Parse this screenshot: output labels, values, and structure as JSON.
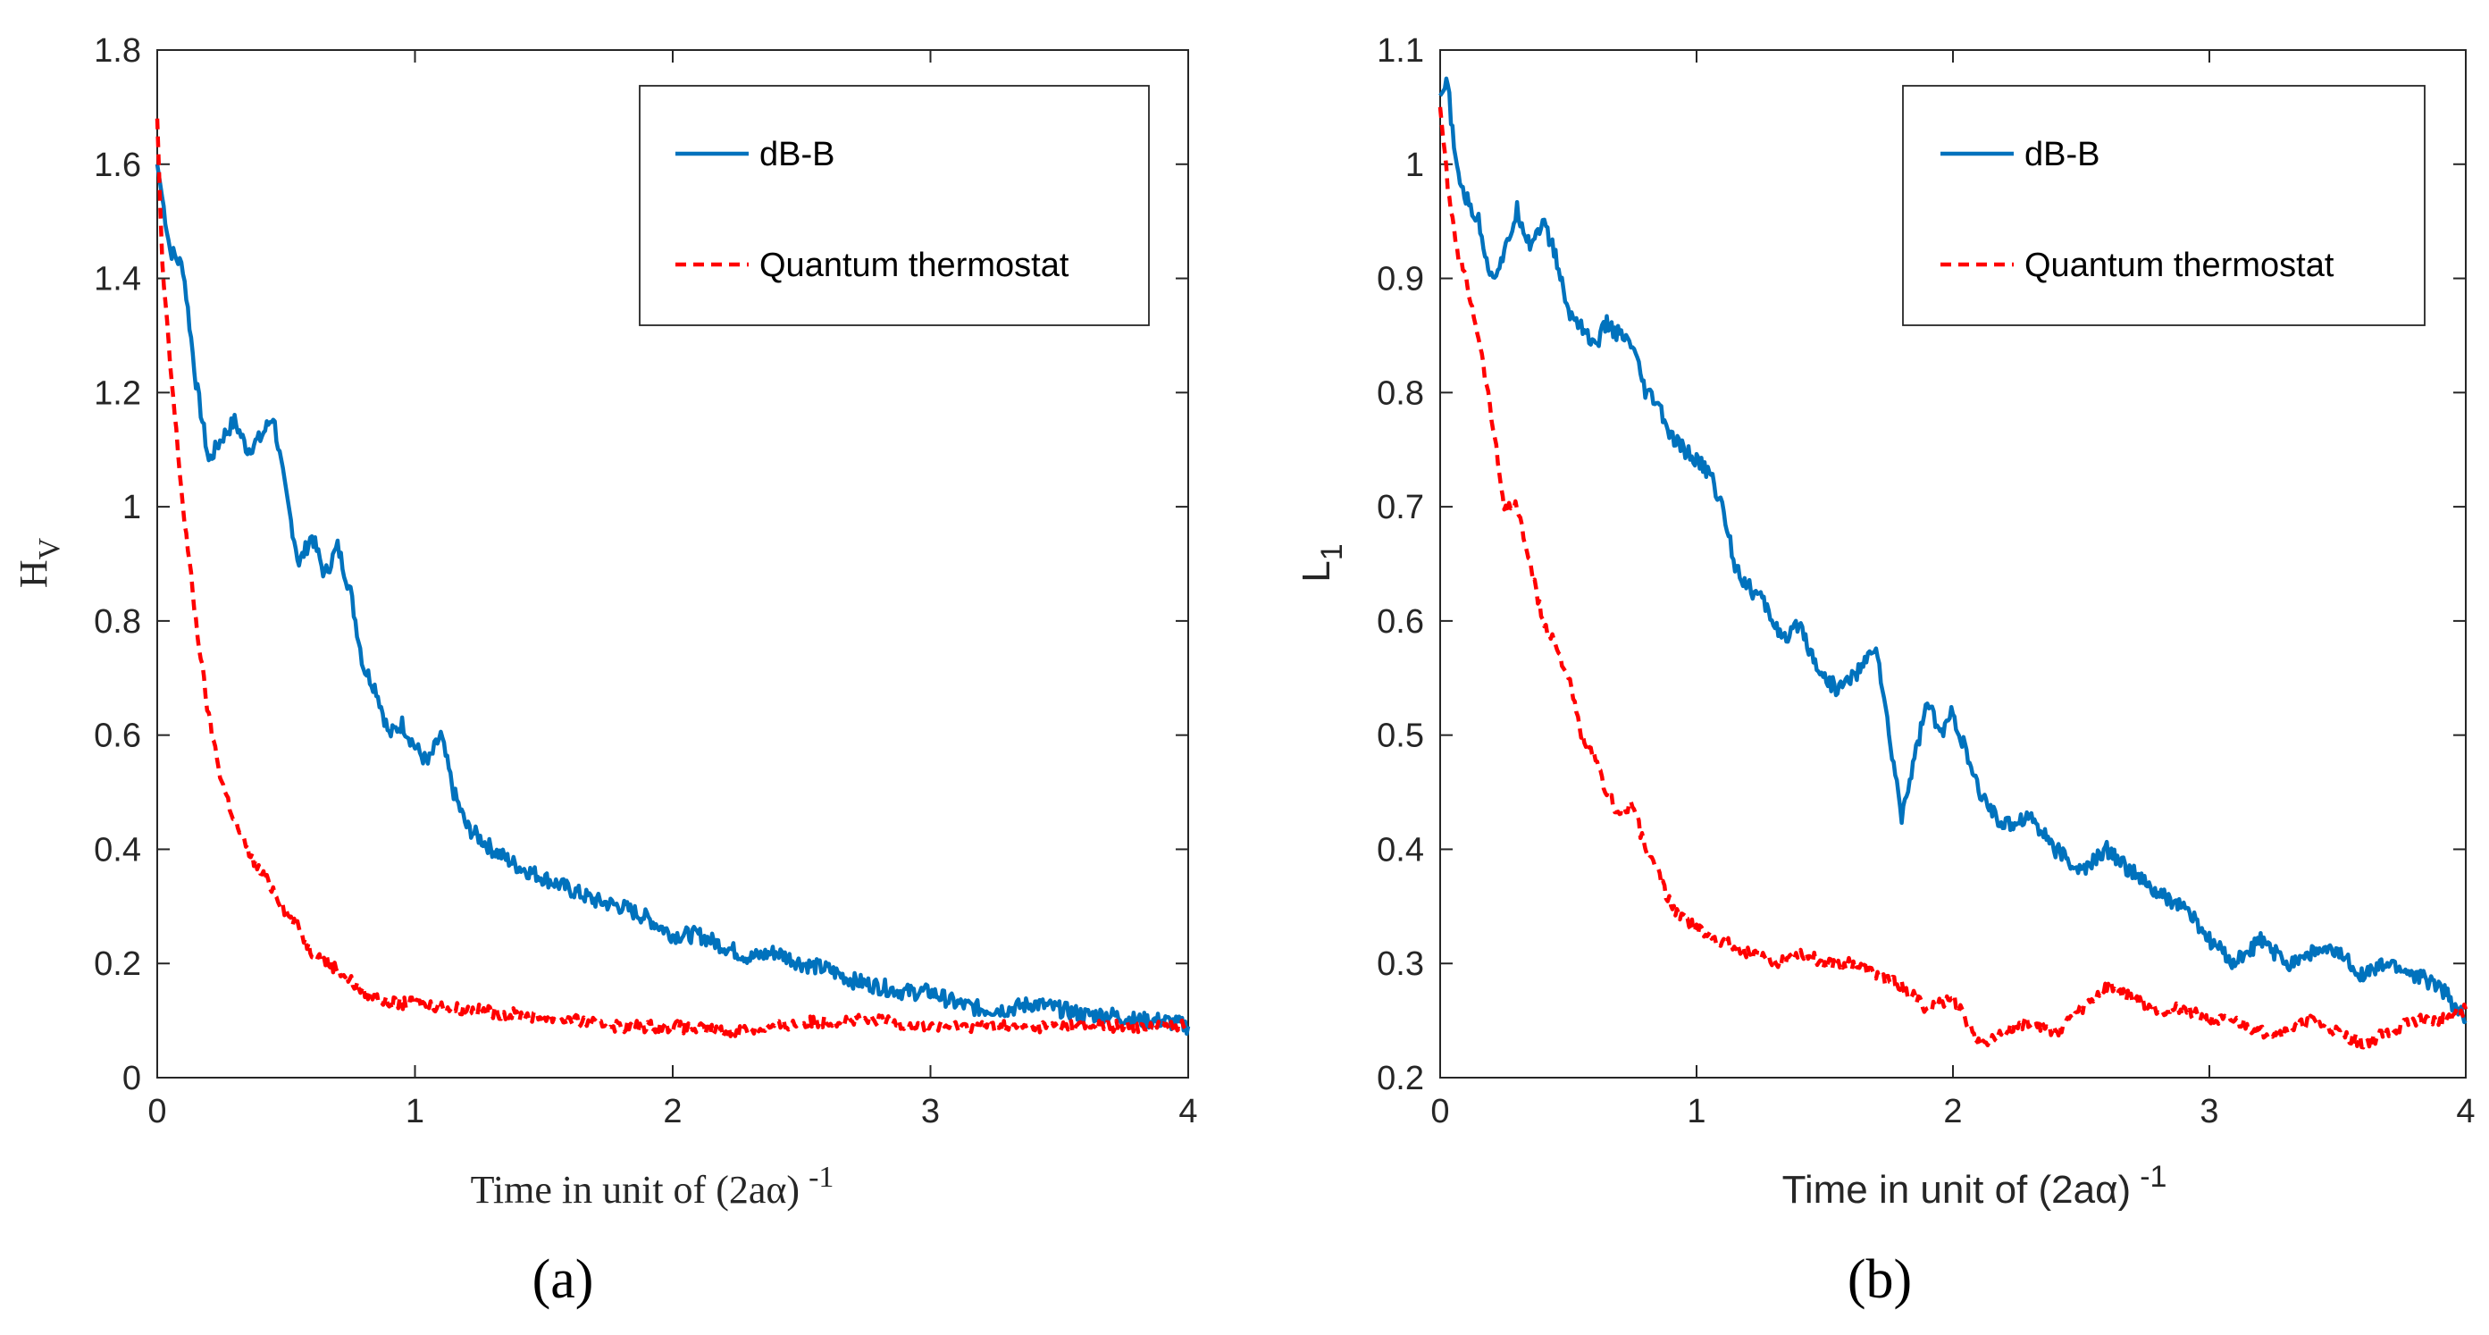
{
  "colors": {
    "dbb": "#0072BD",
    "qt": "#FF0000"
  },
  "chart_data": [
    {
      "type": "line",
      "panel_label": "(a)",
      "xlabel": "Time in unit of (2aα)",
      "xlabel_exp": "-1",
      "ylabel": "H",
      "ylabel_sub": "V",
      "xlim": [
        0,
        4
      ],
      "ylim": [
        0,
        1.8
      ],
      "xticks": [
        "0",
        "1",
        "2",
        "3",
        "4"
      ],
      "yticks": [
        "0",
        "0.2",
        "0.4",
        "0.6",
        "0.8",
        "1",
        "1.2",
        "1.4",
        "1.6",
        "1.8"
      ],
      "legend_placement": "top-right",
      "grid": false,
      "series": [
        {
          "name": "dB-B",
          "style": "solid",
          "x": [
            0,
            0.05,
            0.1,
            0.15,
            0.2,
            0.25,
            0.3,
            0.35,
            0.4,
            0.45,
            0.5,
            0.55,
            0.6,
            0.65,
            0.7,
            0.75,
            0.8,
            0.85,
            0.9,
            0.95,
            1.0,
            1.05,
            1.1,
            1.15,
            1.2,
            1.3,
            1.4,
            1.5,
            1.6,
            1.7,
            1.8,
            1.9,
            2.0,
            2.1,
            2.2,
            2.3,
            2.4,
            2.5,
            2.6,
            2.7,
            2.8,
            2.9,
            3.0,
            3.1,
            3.2,
            3.3,
            3.4,
            3.5,
            3.6,
            3.7,
            3.8,
            3.9,
            4.0
          ],
          "y": [
            1.6,
            1.45,
            1.42,
            1.22,
            1.08,
            1.12,
            1.15,
            1.1,
            1.12,
            1.16,
            1.02,
            0.9,
            0.95,
            0.88,
            0.93,
            0.85,
            0.72,
            0.68,
            0.6,
            0.62,
            0.58,
            0.55,
            0.6,
            0.5,
            0.44,
            0.4,
            0.37,
            0.35,
            0.33,
            0.31,
            0.3,
            0.28,
            0.25,
            0.25,
            0.23,
            0.21,
            0.22,
            0.2,
            0.19,
            0.17,
            0.16,
            0.15,
            0.15,
            0.13,
            0.12,
            0.12,
            0.13,
            0.12,
            0.11,
            0.11,
            0.1,
            0.1,
            0.09
          ]
        },
        {
          "name": "Quantum thermostat",
          "style": "dashed",
          "x": [
            0,
            0.02,
            0.05,
            0.08,
            0.1,
            0.15,
            0.2,
            0.25,
            0.3,
            0.35,
            0.4,
            0.45,
            0.5,
            0.55,
            0.6,
            0.7,
            0.8,
            0.9,
            1.0,
            1.2,
            1.4,
            1.6,
            1.8,
            2.0,
            2.2,
            2.4,
            2.6,
            2.8,
            3.0,
            3.2,
            3.4,
            3.6,
            3.8,
            4.0
          ],
          "y": [
            1.68,
            1.42,
            1.25,
            1.1,
            1.0,
            0.8,
            0.63,
            0.52,
            0.45,
            0.4,
            0.36,
            0.33,
            0.29,
            0.26,
            0.22,
            0.19,
            0.15,
            0.13,
            0.13,
            0.12,
            0.11,
            0.1,
            0.09,
            0.09,
            0.08,
            0.09,
            0.1,
            0.1,
            0.09,
            0.09,
            0.09,
            0.09,
            0.09,
            0.09
          ]
        }
      ]
    },
    {
      "type": "line",
      "panel_label": "(b)",
      "xlabel": "Time in unit of (2aα)",
      "xlabel_exp": "-1",
      "ylabel": "L",
      "ylabel_sub": "1",
      "xlim": [
        0,
        4
      ],
      "ylim": [
        0.2,
        1.1
      ],
      "xticks": [
        "0",
        "1",
        "2",
        "3",
        "4"
      ],
      "yticks": [
        "0.2",
        "0.3",
        "0.4",
        "0.5",
        "0.6",
        "0.7",
        "0.8",
        "0.9",
        "1",
        "1.1"
      ],
      "legend_placement": "top-right",
      "grid": false,
      "series": [
        {
          "name": "dB-B",
          "style": "solid",
          "x": [
            0,
            0.03,
            0.06,
            0.1,
            0.15,
            0.2,
            0.25,
            0.3,
            0.35,
            0.4,
            0.45,
            0.5,
            0.55,
            0.6,
            0.65,
            0.7,
            0.75,
            0.8,
            0.85,
            0.9,
            0.95,
            1.0,
            1.05,
            1.1,
            1.15,
            1.2,
            1.25,
            1.3,
            1.35,
            1.4,
            1.45,
            1.5,
            1.55,
            1.6,
            1.65,
            1.7,
            1.75,
            1.8,
            1.85,
            1.9,
            1.95,
            2.0,
            2.1,
            2.2,
            2.3,
            2.4,
            2.5,
            2.6,
            2.7,
            2.8,
            2.9,
            3.0,
            3.1,
            3.2,
            3.3,
            3.4,
            3.5,
            3.6,
            3.7,
            3.8,
            3.9,
            4.0
          ],
          "y": [
            1.06,
            1.07,
            1.0,
            0.97,
            0.95,
            0.9,
            0.92,
            0.96,
            0.93,
            0.95,
            0.92,
            0.87,
            0.86,
            0.84,
            0.86,
            0.85,
            0.84,
            0.8,
            0.79,
            0.76,
            0.75,
            0.74,
            0.73,
            0.7,
            0.65,
            0.63,
            0.62,
            0.6,
            0.58,
            0.6,
            0.57,
            0.55,
            0.54,
            0.55,
            0.56,
            0.58,
            0.5,
            0.43,
            0.48,
            0.53,
            0.5,
            0.52,
            0.45,
            0.42,
            0.43,
            0.4,
            0.38,
            0.4,
            0.38,
            0.36,
            0.35,
            0.32,
            0.3,
            0.32,
            0.3,
            0.31,
            0.31,
            0.29,
            0.3,
            0.29,
            0.28,
            0.25
          ]
        },
        {
          "name": "Quantum thermostat",
          "style": "dashed",
          "x": [
            0,
            0.03,
            0.06,
            0.1,
            0.15,
            0.2,
            0.25,
            0.3,
            0.35,
            0.4,
            0.45,
            0.5,
            0.55,
            0.6,
            0.65,
            0.7,
            0.75,
            0.8,
            0.85,
            0.9,
            1.0,
            1.1,
            1.2,
            1.3,
            1.4,
            1.5,
            1.6,
            1.7,
            1.8,
            1.9,
            2.0,
            2.1,
            2.2,
            2.3,
            2.4,
            2.5,
            2.6,
            2.7,
            2.8,
            2.9,
            3.0,
            3.1,
            3.2,
            3.3,
            3.4,
            3.5,
            3.6,
            3.7,
            3.8,
            3.9,
            4.0
          ],
          "y": [
            1.05,
            0.98,
            0.93,
            0.9,
            0.85,
            0.78,
            0.7,
            0.7,
            0.65,
            0.6,
            0.58,
            0.55,
            0.5,
            0.48,
            0.45,
            0.43,
            0.44,
            0.4,
            0.38,
            0.35,
            0.33,
            0.32,
            0.31,
            0.3,
            0.31,
            0.3,
            0.3,
            0.29,
            0.28,
            0.26,
            0.27,
            0.23,
            0.24,
            0.25,
            0.24,
            0.26,
            0.28,
            0.27,
            0.26,
            0.26,
            0.25,
            0.25,
            0.24,
            0.24,
            0.25,
            0.24,
            0.23,
            0.24,
            0.25,
            0.25,
            0.26
          ]
        }
      ]
    }
  ]
}
